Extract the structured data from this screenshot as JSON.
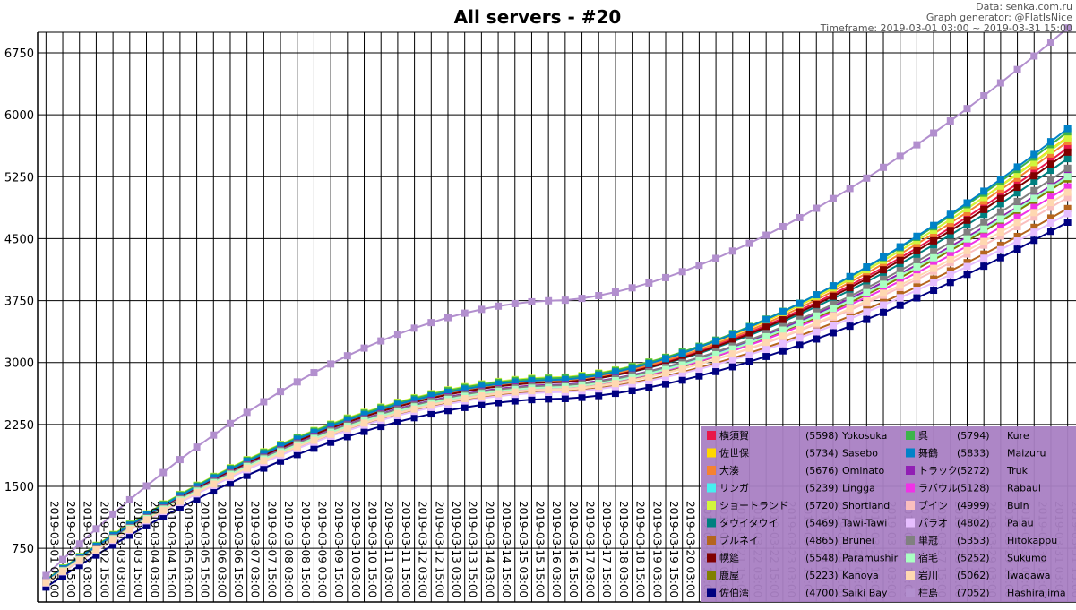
{
  "header": {
    "title": "All servers - #20",
    "data_source": "Data: senka.com.ru",
    "generator": "Graph generator: @FlatIsNice",
    "timeframe": "Timeframe: 2019-03-01 03:00 ~ 2019-03-31 15:00"
  },
  "chart_data": {
    "type": "line",
    "title": "All servers - #20",
    "ylim": [
      100,
      7000
    ],
    "yticks": [
      750,
      1500,
      2250,
      3000,
      3750,
      4500,
      5250,
      6000,
      6750
    ],
    "grid": true,
    "legend_position": "bottom-right",
    "x": [
      "2019-03-01 03:00",
      "2019-03-01 15:00",
      "2019-03-02 03:00",
      "2019-03-02 15:00",
      "2019-03-03 03:00",
      "2019-03-03 15:00",
      "2019-03-04 03:00",
      "2019-03-04 15:00",
      "2019-03-05 03:00",
      "2019-03-05 15:00",
      "2019-03-06 03:00",
      "2019-03-06 15:00",
      "2019-03-07 03:00",
      "2019-03-07 15:00",
      "2019-03-08 03:00",
      "2019-03-08 15:00",
      "2019-03-09 03:00",
      "2019-03-09 15:00",
      "2019-03-10 03:00",
      "2019-03-10 15:00",
      "2019-03-11 03:00",
      "2019-03-11 15:00",
      "2019-03-12 03:00",
      "2019-03-12 15:00",
      "2019-03-13 03:00",
      "2019-03-13 15:00",
      "2019-03-14 03:00",
      "2019-03-14 15:00",
      "2019-03-15 03:00",
      "2019-03-15 15:00",
      "2019-03-16 03:00",
      "2019-03-16 15:00",
      "2019-03-17 03:00",
      "2019-03-17 15:00",
      "2019-03-18 03:00",
      "2019-03-18 15:00",
      "2019-03-19 03:00",
      "2019-03-19 15:00",
      "2019-03-20 03:00",
      "2019-03-20 15:00",
      "2019-03-21 03:00",
      "2019-03-21 15:00",
      "2019-03-22 03:00",
      "2019-03-22 15:00",
      "2019-03-23 03:00",
      "2019-03-23 15:00",
      "2019-03-24 03:00",
      "2019-03-24 15:00",
      "2019-03-25 03:00",
      "2019-03-25 15:00",
      "2019-03-26 03:00",
      "2019-03-26 15:00",
      "2019-03-27 03:00",
      "2019-03-27 15:00",
      "2019-03-28 03:00",
      "2019-03-28 15:00",
      "2019-03-29 03:00",
      "2019-03-29 15:00",
      "2019-03-30 03:00",
      "2019-03-30 15:00",
      "2019-03-31 03:00",
      "2019-03-31 15:00"
    ],
    "series": [
      {
        "name": "横須賀",
        "en": "Yokosuka",
        "final": "(5598)",
        "final_color": "#000000",
        "color": "#e8174a",
        "start": 350,
        "mid": 2770,
        "end": 5598
      },
      {
        "name": "佐世保",
        "en": "Sasebo",
        "final": "(5734)",
        "final_color": "#000000",
        "color": "#ffd700",
        "start": 360,
        "mid": 2800,
        "end": 5734
      },
      {
        "name": "大湊",
        "en": "Ominato",
        "final": "(5676)",
        "final_color": "#000000",
        "color": "#f58231",
        "start": 355,
        "mid": 2780,
        "end": 5676
      },
      {
        "name": "リンガ",
        "en": "Lingga",
        "final": "(5239)",
        "final_color": "#000000",
        "color": "#46f0f0",
        "start": 345,
        "mid": 2720,
        "end": 5239
      },
      {
        "name": "ショートランド",
        "en": "Shortland",
        "final": "(5720)",
        "final_color": "#000000",
        "color": "#d2f53c",
        "start": 370,
        "mid": 2820,
        "end": 5720
      },
      {
        "name": "タウイタウイ",
        "en": "Tawi-Tawi",
        "final": "(5469)",
        "final_color": "#000000",
        "color": "#008080",
        "start": 350,
        "mid": 2760,
        "end": 5469
      },
      {
        "name": "ブルネイ",
        "en": "Brunei",
        "final": "(4865)",
        "final_color": "#2e8b2e",
        "color": "#b5651d",
        "start": 330,
        "mid": 2650,
        "end": 4865
      },
      {
        "name": "幌筵",
        "en": "Paramushir",
        "final": "(5548)",
        "final_color": "#000000",
        "color": "#800000",
        "start": 355,
        "mid": 2760,
        "end": 5548
      },
      {
        "name": "鹿屋",
        "en": "Kanoya",
        "final": "(5223)",
        "final_color": "#000000",
        "color": "#808000",
        "start": 340,
        "mid": 2680,
        "end": 5223
      },
      {
        "name": "佐伯湾",
        "en": "Saiki Bay",
        "final": "(4700)",
        "final_color": "#2e8b2e",
        "color": "#000080",
        "start": 280,
        "mid": 2560,
        "end": 4700
      },
      {
        "name": "呉",
        "en": "Kure",
        "final": "(5794)",
        "final_color": "#cc0000",
        "color": "#3cb44b",
        "start": 365,
        "mid": 2810,
        "end": 5794
      },
      {
        "name": "舞鶴",
        "en": "Maizuru",
        "final": "(5833)",
        "final_color": "#cc0000",
        "color": "#0082c8",
        "start": 360,
        "mid": 2790,
        "end": 5833
      },
      {
        "name": "トラック",
        "en": "Truk",
        "final": "(5272)",
        "final_color": "#000000",
        "color": "#911eb4",
        "start": 345,
        "mid": 2730,
        "end": 5272
      },
      {
        "name": "ラバウル",
        "en": "Rabaul",
        "final": "(5128)",
        "final_color": "#000000",
        "color": "#f032e6",
        "start": 340,
        "mid": 2700,
        "end": 5128
      },
      {
        "name": "ブイン",
        "en": "Buin",
        "final": "(4999)",
        "final_color": "#000000",
        "color": "#fabebe",
        "start": 335,
        "mid": 2680,
        "end": 4999
      },
      {
        "name": "パラオ",
        "en": "Palau",
        "final": "(4802)",
        "final_color": "#2e8b2e",
        "color": "#e6beff",
        "start": 330,
        "mid": 2640,
        "end": 4802
      },
      {
        "name": "単冠",
        "en": "Hitokappu",
        "final": "(5353)",
        "final_color": "#000000",
        "color": "#808080",
        "start": 345,
        "mid": 2720,
        "end": 5353
      },
      {
        "name": "宿毛",
        "en": "Sukumo",
        "final": "(5252)",
        "final_color": "#000000",
        "color": "#aaffc3",
        "start": 340,
        "mid": 2700,
        "end": 5252
      },
      {
        "name": "岩川",
        "en": "Iwagawa",
        "final": "(5062)",
        "final_color": "#000000",
        "color": "#ffd8b1",
        "start": 335,
        "mid": 2670,
        "end": 5062
      },
      {
        "name": "柱島",
        "en": "Hashirajima",
        "final": "(7052)",
        "final_color": "#cc0000",
        "color": "#b28fce",
        "start": 420,
        "mid": 3750,
        "end": 7052
      }
    ]
  }
}
